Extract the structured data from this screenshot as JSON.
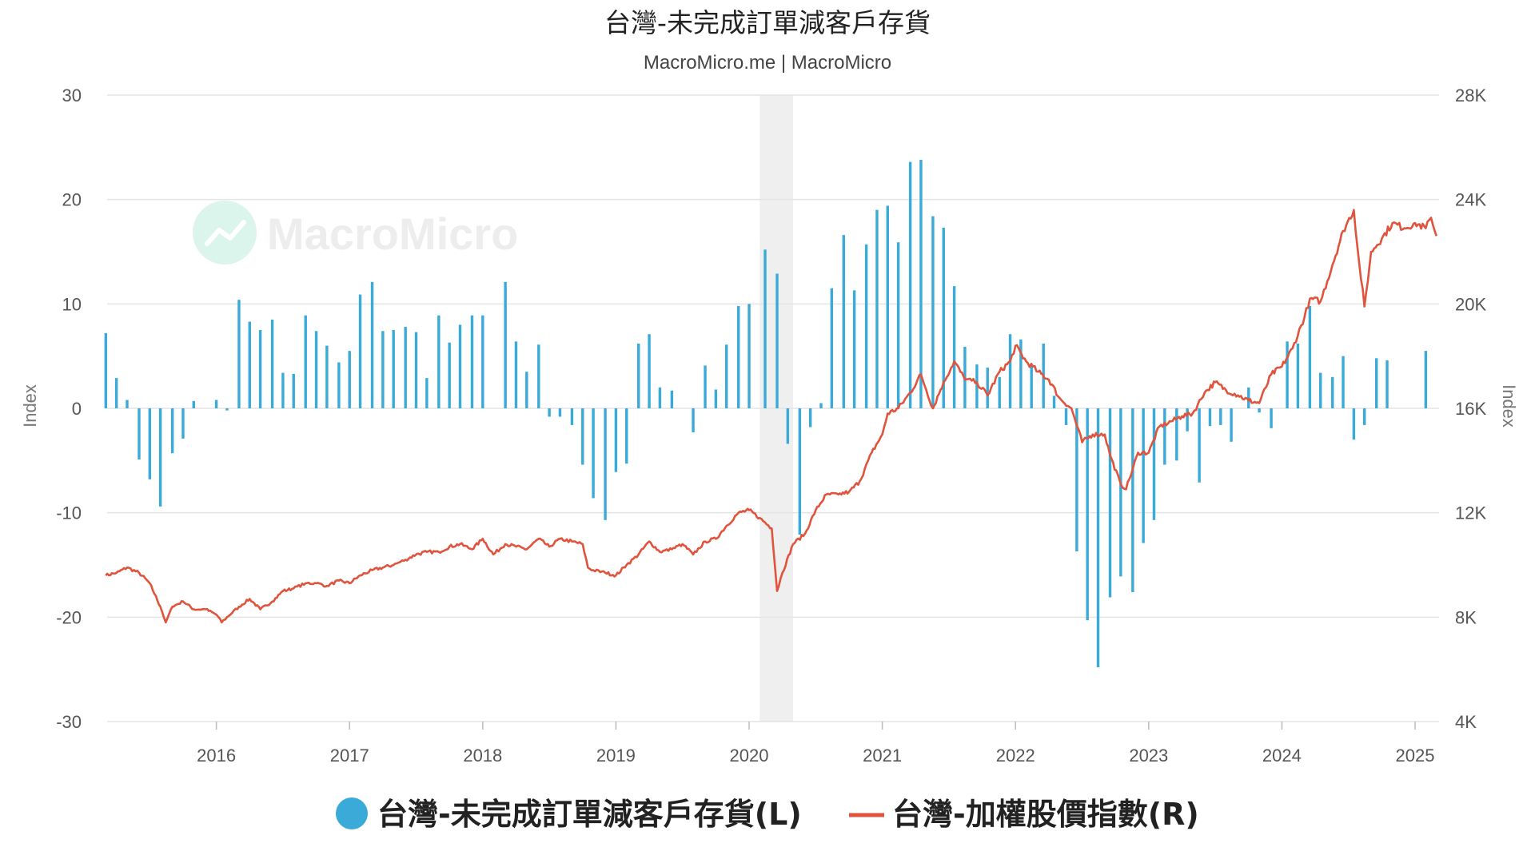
{
  "chart_data": {
    "type": "bar+line",
    "title": "台灣-未完成訂單減客戶存貨",
    "subtitle": "MacroMicro.me | MacroMicro",
    "watermark": "MacroMicro",
    "y_left": {
      "label": "Index",
      "ticks": [
        "30",
        "20",
        "10",
        "0",
        "-10",
        "-20",
        "-30"
      ],
      "range": [
        -30,
        30
      ]
    },
    "y_right": {
      "label": "Index",
      "ticks": [
        "28K",
        "24K",
        "20K",
        "16K",
        "12K",
        "8K",
        "4K"
      ],
      "range": [
        4000,
        28000
      ]
    },
    "x_ticks": [
      "2016",
      "2017",
      "2018",
      "2019",
      "2020",
      "2021",
      "2022",
      "2023",
      "2024",
      "2025"
    ],
    "x_range": [
      2015.18,
      2025.18
    ],
    "recession_band": [
      2020.08,
      2020.33
    ],
    "colors": {
      "bars": "#3aaad8",
      "line": "#e0533d",
      "band": "#efefef",
      "grid": "#e4e4e4"
    },
    "legend": [
      {
        "name": "台灣-未完成訂單減客戶存貨(L)",
        "marker": "circle"
      },
      {
        "name": "台灣-加權股價指數(R)",
        "marker": "line"
      }
    ],
    "series": [
      {
        "name": "台灣-未完成訂單減客戶存貨(L)",
        "type": "bar",
        "points": [
          [
            2015.17,
            7.2
          ],
          [
            2015.25,
            2.9
          ],
          [
            2015.33,
            0.8
          ],
          [
            2015.42,
            -4.9
          ],
          [
            2015.5,
            -6.8
          ],
          [
            2015.58,
            -9.4
          ],
          [
            2015.67,
            -4.3
          ],
          [
            2015.75,
            -2.9
          ],
          [
            2015.83,
            0.7
          ],
          [
            2016.0,
            0.8
          ],
          [
            2016.08,
            -0.2
          ],
          [
            2016.17,
            10.4
          ],
          [
            2016.25,
            8.3
          ],
          [
            2016.33,
            7.5
          ],
          [
            2016.42,
            8.5
          ],
          [
            2016.5,
            3.4
          ],
          [
            2016.58,
            3.3
          ],
          [
            2016.67,
            8.9
          ],
          [
            2016.75,
            7.4
          ],
          [
            2016.83,
            6.0
          ],
          [
            2016.92,
            4.4
          ],
          [
            2017.0,
            5.5
          ],
          [
            2017.08,
            10.9
          ],
          [
            2017.17,
            12.1
          ],
          [
            2017.25,
            7.4
          ],
          [
            2017.33,
            7.5
          ],
          [
            2017.42,
            7.8
          ],
          [
            2017.5,
            7.3
          ],
          [
            2017.58,
            2.9
          ],
          [
            2017.67,
            8.9
          ],
          [
            2017.75,
            6.3
          ],
          [
            2017.83,
            8.0
          ],
          [
            2017.92,
            8.9
          ],
          [
            2018.0,
            8.9
          ],
          [
            2018.17,
            12.1
          ],
          [
            2018.25,
            6.4
          ],
          [
            2018.33,
            3.5
          ],
          [
            2018.42,
            6.1
          ],
          [
            2018.5,
            -0.8
          ],
          [
            2018.58,
            -0.8
          ],
          [
            2018.67,
            -1.6
          ],
          [
            2018.75,
            -5.4
          ],
          [
            2018.83,
            -8.6
          ],
          [
            2018.92,
            -10.7
          ],
          [
            2019.0,
            -6.1
          ],
          [
            2019.08,
            -5.3
          ],
          [
            2019.17,
            6.2
          ],
          [
            2019.25,
            7.1
          ],
          [
            2019.33,
            2.0
          ],
          [
            2019.42,
            1.7
          ],
          [
            2019.58,
            -2.3
          ],
          [
            2019.67,
            4.1
          ],
          [
            2019.75,
            1.8
          ],
          [
            2019.83,
            6.1
          ],
          [
            2019.92,
            9.8
          ],
          [
            2020.0,
            10.0
          ],
          [
            2020.12,
            15.2
          ],
          [
            2020.21,
            12.9
          ],
          [
            2020.29,
            -3.4
          ],
          [
            2020.38,
            -12.1
          ],
          [
            2020.46,
            -1.8
          ],
          [
            2020.54,
            0.5
          ],
          [
            2020.62,
            11.5
          ],
          [
            2020.71,
            16.6
          ],
          [
            2020.79,
            11.3
          ],
          [
            2020.88,
            15.7
          ],
          [
            2020.96,
            19.0
          ],
          [
            2021.04,
            19.4
          ],
          [
            2021.12,
            15.9
          ],
          [
            2021.21,
            23.6
          ],
          [
            2021.29,
            23.8
          ],
          [
            2021.38,
            18.4
          ],
          [
            2021.46,
            17.3
          ],
          [
            2021.54,
            11.7
          ],
          [
            2021.62,
            5.9
          ],
          [
            2021.71,
            4.2
          ],
          [
            2021.79,
            3.9
          ],
          [
            2021.88,
            3.0
          ],
          [
            2021.96,
            7.1
          ],
          [
            2022.04,
            6.6
          ],
          [
            2022.12,
            4.1
          ],
          [
            2022.21,
            6.2
          ],
          [
            2022.29,
            1.2
          ],
          [
            2022.38,
            -1.6
          ],
          [
            2022.46,
            -13.7
          ],
          [
            2022.54,
            -20.3
          ],
          [
            2022.62,
            -24.8
          ],
          [
            2022.71,
            -18.1
          ],
          [
            2022.79,
            -16.1
          ],
          [
            2022.88,
            -17.6
          ],
          [
            2022.96,
            -12.9
          ],
          [
            2023.04,
            -10.7
          ],
          [
            2023.12,
            -5.4
          ],
          [
            2023.21,
            -5.0
          ],
          [
            2023.29,
            -2.2
          ],
          [
            2023.38,
            -7.1
          ],
          [
            2023.46,
            -1.7
          ],
          [
            2023.54,
            -1.6
          ],
          [
            2023.62,
            -3.2
          ],
          [
            2023.75,
            2.0
          ],
          [
            2023.83,
            -0.4
          ],
          [
            2023.92,
            -1.9
          ],
          [
            2024.04,
            6.4
          ],
          [
            2024.12,
            6.2
          ],
          [
            2024.21,
            9.8
          ],
          [
            2024.29,
            3.4
          ],
          [
            2024.38,
            3.0
          ],
          [
            2024.46,
            5.0
          ],
          [
            2024.54,
            -3.0
          ],
          [
            2024.62,
            -1.6
          ],
          [
            2024.71,
            4.8
          ],
          [
            2024.79,
            4.6
          ],
          [
            2025.08,
            5.5
          ]
        ]
      },
      {
        "name": "台灣-加權股價指數(R)",
        "type": "line",
        "points": [
          [
            2015.17,
            9600
          ],
          [
            2015.25,
            9700
          ],
          [
            2015.33,
            9900
          ],
          [
            2015.42,
            9700
          ],
          [
            2015.5,
            9300
          ],
          [
            2015.58,
            8400
          ],
          [
            2015.62,
            7800
          ],
          [
            2015.67,
            8400
          ],
          [
            2015.75,
            8600
          ],
          [
            2015.83,
            8300
          ],
          [
            2015.92,
            8300
          ],
          [
            2016.0,
            8100
          ],
          [
            2016.04,
            7800
          ],
          [
            2016.08,
            8000
          ],
          [
            2016.17,
            8400
          ],
          [
            2016.25,
            8700
          ],
          [
            2016.33,
            8300
          ],
          [
            2016.42,
            8600
          ],
          [
            2016.5,
            9000
          ],
          [
            2016.58,
            9100
          ],
          [
            2016.67,
            9300
          ],
          [
            2016.75,
            9300
          ],
          [
            2016.83,
            9200
          ],
          [
            2016.92,
            9400
          ],
          [
            2017.0,
            9300
          ],
          [
            2017.08,
            9600
          ],
          [
            2017.17,
            9800
          ],
          [
            2017.25,
            9900
          ],
          [
            2017.33,
            10000
          ],
          [
            2017.42,
            10200
          ],
          [
            2017.5,
            10400
          ],
          [
            2017.58,
            10500
          ],
          [
            2017.67,
            10500
          ],
          [
            2017.75,
            10700
          ],
          [
            2017.83,
            10800
          ],
          [
            2017.92,
            10600
          ],
          [
            2018.0,
            11000
          ],
          [
            2018.08,
            10400
          ],
          [
            2018.17,
            10800
          ],
          [
            2018.25,
            10700
          ],
          [
            2018.33,
            10600
          ],
          [
            2018.42,
            11000
          ],
          [
            2018.5,
            10700
          ],
          [
            2018.58,
            11000
          ],
          [
            2018.67,
            10900
          ],
          [
            2018.75,
            10800
          ],
          [
            2018.79,
            9900
          ],
          [
            2018.83,
            9800
          ],
          [
            2018.92,
            9700
          ],
          [
            2019.0,
            9600
          ],
          [
            2019.08,
            10000
          ],
          [
            2019.17,
            10400
          ],
          [
            2019.25,
            10900
          ],
          [
            2019.33,
            10500
          ],
          [
            2019.42,
            10600
          ],
          [
            2019.5,
            10800
          ],
          [
            2019.58,
            10400
          ],
          [
            2019.67,
            10900
          ],
          [
            2019.75,
            11000
          ],
          [
            2019.83,
            11500
          ],
          [
            2019.92,
            12000
          ],
          [
            2020.0,
            12100
          ],
          [
            2020.08,
            11800
          ],
          [
            2020.17,
            11400
          ],
          [
            2020.21,
            9000
          ],
          [
            2020.25,
            9700
          ],
          [
            2020.33,
            10800
          ],
          [
            2020.42,
            11200
          ],
          [
            2020.5,
            12100
          ],
          [
            2020.58,
            12700
          ],
          [
            2020.67,
            12700
          ],
          [
            2020.75,
            12800
          ],
          [
            2020.83,
            13200
          ],
          [
            2020.92,
            14300
          ],
          [
            2021.0,
            15000
          ],
          [
            2021.04,
            15800
          ],
          [
            2021.12,
            16000
          ],
          [
            2021.21,
            16600
          ],
          [
            2021.29,
            17300
          ],
          [
            2021.38,
            16000
          ],
          [
            2021.46,
            17000
          ],
          [
            2021.54,
            17800
          ],
          [
            2021.62,
            17100
          ],
          [
            2021.71,
            17000
          ],
          [
            2021.79,
            16500
          ],
          [
            2021.88,
            17400
          ],
          [
            2021.96,
            17800
          ],
          [
            2022.0,
            18400
          ],
          [
            2022.08,
            17800
          ],
          [
            2022.17,
            17400
          ],
          [
            2022.25,
            17100
          ],
          [
            2022.33,
            16400
          ],
          [
            2022.42,
            16000
          ],
          [
            2022.5,
            14700
          ],
          [
            2022.58,
            15000
          ],
          [
            2022.67,
            15000
          ],
          [
            2022.71,
            14200
          ],
          [
            2022.79,
            13100
          ],
          [
            2022.83,
            12900
          ],
          [
            2022.92,
            14300
          ],
          [
            2023.0,
            14300
          ],
          [
            2023.08,
            15300
          ],
          [
            2023.17,
            15500
          ],
          [
            2023.25,
            15700
          ],
          [
            2023.33,
            15800
          ],
          [
            2023.42,
            16600
          ],
          [
            2023.5,
            17000
          ],
          [
            2023.58,
            16700
          ],
          [
            2023.67,
            16500
          ],
          [
            2023.75,
            16300
          ],
          [
            2023.83,
            16200
          ],
          [
            2023.92,
            17300
          ],
          [
            2024.0,
            17600
          ],
          [
            2024.08,
            18300
          ],
          [
            2024.17,
            19500
          ],
          [
            2024.21,
            20200
          ],
          [
            2024.29,
            20100
          ],
          [
            2024.38,
            21500
          ],
          [
            2024.46,
            22800
          ],
          [
            2024.54,
            23600
          ],
          [
            2024.58,
            21600
          ],
          [
            2024.62,
            19900
          ],
          [
            2024.67,
            22000
          ],
          [
            2024.75,
            22500
          ],
          [
            2024.83,
            23100
          ],
          [
            2024.92,
            22900
          ],
          [
            2025.0,
            23100
          ],
          [
            2025.08,
            22900
          ],
          [
            2025.12,
            23300
          ],
          [
            2025.16,
            22600
          ]
        ]
      }
    ]
  }
}
